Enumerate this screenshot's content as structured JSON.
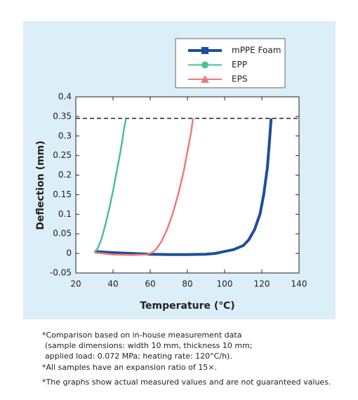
{
  "chart_data": {
    "type": "line",
    "x_label": "Temperature (℃)",
    "y_label": "Deflection (mm)",
    "xlim": [
      20,
      140
    ],
    "xticks": [
      20,
      40,
      60,
      80,
      100,
      120,
      140
    ],
    "ylim": [
      -0.05,
      0.4
    ],
    "yticks": [
      0.4,
      0.35,
      0.3,
      0.25,
      0.2,
      0.15,
      0.1,
      0.05,
      0,
      -0.05
    ],
    "reference_line": 0.345,
    "series": [
      {
        "name": "mPPE Foam",
        "color": "#1f4e9c",
        "marker": "square",
        "x": [
          30,
          40,
          50,
          60,
          70,
          80,
          90,
          95,
          100,
          105,
          110,
          113,
          116,
          119,
          121,
          123,
          124,
          125
        ],
        "values": [
          0.005,
          0.002,
          0,
          -0.002,
          -0.003,
          -0.003,
          -0.002,
          0,
          0.005,
          0.01,
          0.02,
          0.035,
          0.06,
          0.1,
          0.15,
          0.22,
          0.28,
          0.345
        ]
      },
      {
        "name": "EPP",
        "color": "#4dbf9a",
        "marker": "circle",
        "x": [
          30,
          32,
          34,
          36,
          38,
          40,
          42,
          44,
          46,
          47
        ],
        "values": [
          0.002,
          0.015,
          0.04,
          0.075,
          0.115,
          0.16,
          0.21,
          0.26,
          0.32,
          0.345
        ]
      },
      {
        "name": "EPS",
        "color": "#f07a7a",
        "marker": "triangle",
        "x": [
          30,
          40,
          50,
          58,
          61,
          63,
          66,
          69,
          72,
          75,
          78,
          80,
          82,
          83
        ],
        "values": [
          0.002,
          -0.003,
          -0.004,
          -0.003,
          0.002,
          0.01,
          0.03,
          0.06,
          0.1,
          0.15,
          0.21,
          0.26,
          0.31,
          0.345
        ]
      }
    ],
    "notes": [
      "*Comparison based on in-house measurement data",
      "(sample dimensions: width 10 mm, thickness 10 mm;",
      "applied load: 0.072 MPa; heating rate: 120°C/h).",
      "*All samples have an expansion ratio of 15×.",
      "*The graphs show actual measured values and are not guaranteed values."
    ]
  }
}
